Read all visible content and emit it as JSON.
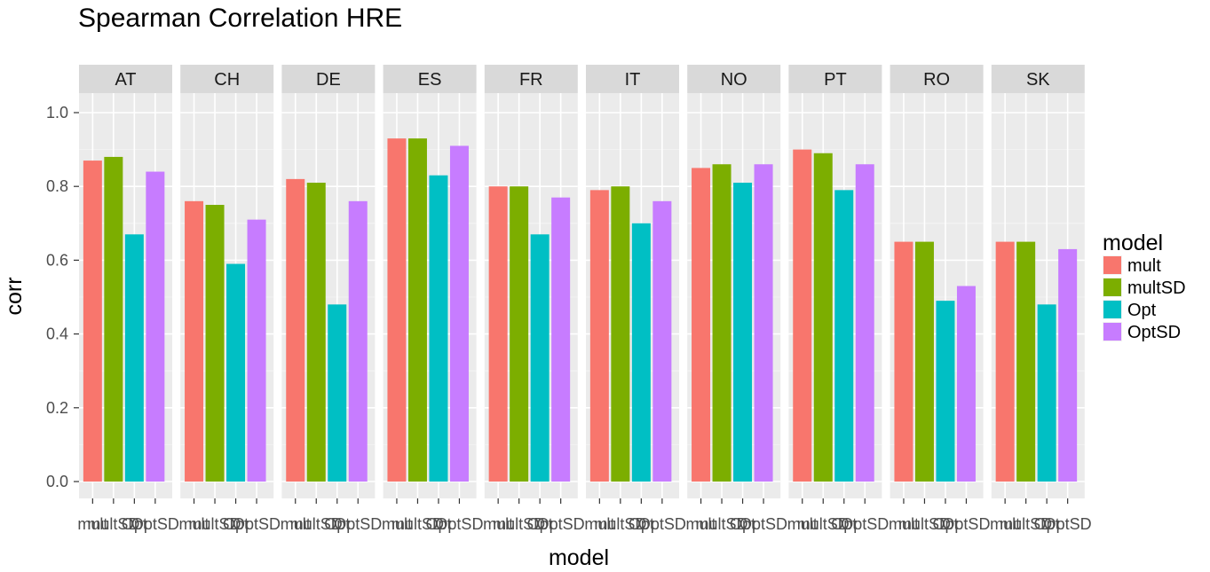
{
  "chart_data": {
    "type": "bar",
    "title": "Spearman Correlation HRE",
    "xlabel": "model",
    "ylabel": "corr",
    "ylim": [
      0,
      1.0
    ],
    "yticks": [
      "0.0",
      "0.2",
      "0.4",
      "0.6",
      "0.8",
      "1.0"
    ],
    "grid": true,
    "legend_placement": "right",
    "legend_title": "model",
    "categories": [
      "mult",
      "multSD",
      "Opt",
      "OptSD"
    ],
    "colors": [
      "#F8766D",
      "#7CAE00",
      "#00BFC4",
      "#C77CFF"
    ],
    "panels": [
      {
        "name": "AT",
        "values": [
          0.87,
          0.88,
          0.67,
          0.84
        ]
      },
      {
        "name": "CH",
        "values": [
          0.76,
          0.75,
          0.59,
          0.71
        ]
      },
      {
        "name": "DE",
        "values": [
          0.82,
          0.81,
          0.48,
          0.76
        ]
      },
      {
        "name": "ES",
        "values": [
          0.93,
          0.93,
          0.83,
          0.91
        ]
      },
      {
        "name": "FR",
        "values": [
          0.8,
          0.8,
          0.67,
          0.77
        ]
      },
      {
        "name": "IT",
        "values": [
          0.79,
          0.8,
          0.7,
          0.76
        ]
      },
      {
        "name": "NO",
        "values": [
          0.85,
          0.86,
          0.81,
          0.86
        ]
      },
      {
        "name": "PT",
        "values": [
          0.9,
          0.89,
          0.79,
          0.86
        ]
      },
      {
        "name": "RO",
        "values": [
          0.65,
          0.65,
          0.49,
          0.53
        ]
      },
      {
        "name": "SK",
        "values": [
          0.65,
          0.65,
          0.48,
          0.63
        ]
      }
    ]
  }
}
